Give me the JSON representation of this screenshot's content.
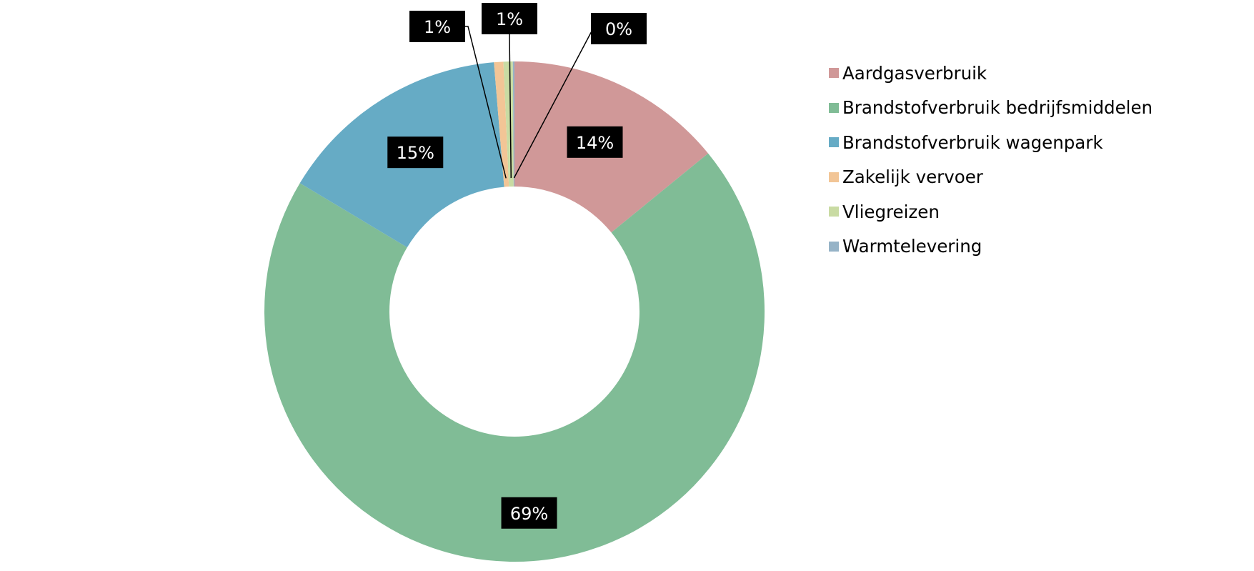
{
  "chart_data": {
    "type": "pie",
    "style": "donut",
    "legend_position": "right",
    "series": [
      {
        "name": "Aardgasverbruik",
        "value": 14,
        "label": "14%",
        "color": "#d09898"
      },
      {
        "name": "Brandstofverbruik bedrijfsmiddelen",
        "value": 69,
        "label": "69%",
        "color": "#80bc96"
      },
      {
        "name": "Brandstofverbruik wagenpark",
        "value": 15,
        "label": "15%",
        "color": "#66abc5"
      },
      {
        "name": "Zakelijk vervoer",
        "value": 0.6,
        "label": "1%",
        "color": "#f2c596"
      },
      {
        "name": "Vliegreizen",
        "value": 0.6,
        "label": "1%",
        "color": "#c9dba3"
      },
      {
        "name": "Warmtelevering",
        "value": 0.1,
        "label": "0%",
        "color": "#96b3c7"
      }
    ]
  }
}
